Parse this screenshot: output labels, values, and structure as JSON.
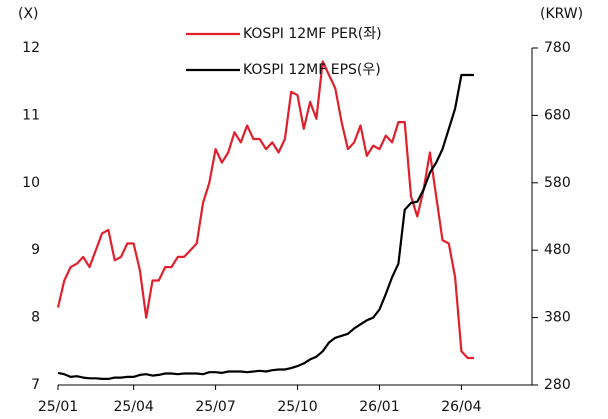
{
  "chart_data": {
    "type": "line",
    "y_label": "(X)",
    "y2_label": "(KRW)",
    "categories": [
      "25/01",
      null,
      null,
      null,
      null,
      null,
      null,
      null,
      null,
      null,
      null,
      null,
      "25/04",
      null,
      null,
      null,
      null,
      null,
      null,
      null,
      null,
      null,
      null,
      null,
      null,
      "25/07",
      null,
      null,
      null,
      null,
      null,
      null,
      null,
      null,
      null,
      null,
      null,
      null,
      "25/10",
      null,
      null,
      null,
      null,
      null,
      null,
      null,
      null,
      null,
      null,
      null,
      null,
      "26/01",
      null,
      null,
      null,
      null,
      null,
      null,
      null,
      null,
      null,
      null,
      null,
      null,
      "26/04",
      null,
      null
    ],
    "series": [
      {
        "name": "KOSPI 12MF PER(좌)",
        "color": "#e0202c",
        "axis": "y",
        "values": [
          8.15,
          8.55,
          8.75,
          8.8,
          8.9,
          8.75,
          9.0,
          9.25,
          9.3,
          8.85,
          8.9,
          9.1,
          9.1,
          8.7,
          8.0,
          8.55,
          8.55,
          8.75,
          8.75,
          8.9,
          8.9,
          9.0,
          9.1,
          9.7,
          10.0,
          10.5,
          10.3,
          10.45,
          10.75,
          10.6,
          10.85,
          10.65,
          10.65,
          10.5,
          10.6,
          10.45,
          10.65,
          11.35,
          11.3,
          10.8,
          11.2,
          10.95,
          11.8,
          11.6,
          11.4,
          10.9,
          10.5,
          10.6,
          10.85,
          10.4,
          10.55,
          10.5,
          10.7,
          10.6,
          10.9,
          10.9,
          9.8,
          9.5,
          9.9,
          10.45,
          9.8,
          9.15,
          9.1,
          8.6,
          7.5,
          7.4,
          7.4
        ]
      },
      {
        "name": "KOSPI 12MF EPS(우)",
        "color": "#000000",
        "axis": "y2",
        "values": [
          298,
          296,
          292,
          293,
          291,
          290,
          290,
          289,
          289,
          291,
          291,
          292,
          292,
          295,
          296,
          294,
          295,
          297,
          297,
          296,
          297,
          297,
          297,
          296,
          299,
          299,
          298,
          300,
          300,
          300,
          299,
          300,
          301,
          300,
          302,
          303,
          303,
          305,
          308,
          312,
          318,
          322,
          330,
          343,
          350,
          353,
          356,
          364,
          370,
          376,
          380,
          392,
          415,
          440,
          460,
          540,
          550,
          552,
          570,
          595,
          610,
          630,
          660,
          690,
          740,
          740,
          740
        ]
      }
    ],
    "ylim": [
      7,
      12
    ],
    "yticks": [
      7,
      8,
      9,
      10,
      11,
      12
    ],
    "y2lim": [
      280,
      780
    ],
    "y2ticks": [
      280,
      380,
      480,
      580,
      680,
      780
    ],
    "legend": "top"
  }
}
